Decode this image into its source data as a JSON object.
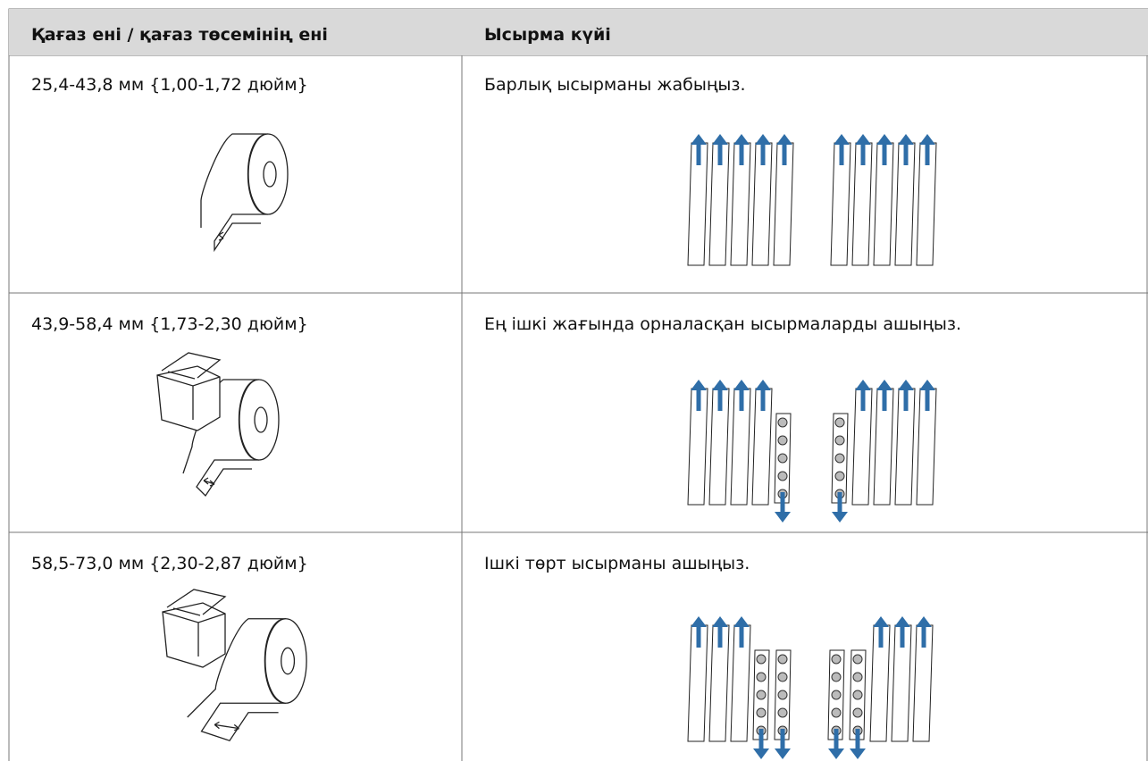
{
  "table": {
    "header": [
      "Қағаз ені / қағаз төсемінің ені",
      "Ысырма күйі"
    ],
    "rows": [
      [
        "25,4-43,8 мм {1,00-1,72 дюйм}",
        "Барлық ысырманы жабыңыз."
      ],
      [
        "43,9-58,4 мм {1,73-2,30 дюйм}",
        "Ең ішкі жағында орналасқан ысырмаларды ашыңыз."
      ],
      [
        "58,5-73,0 мм {2,30-2,87 дюйм}",
        "Ішкі төрт ысырманы ашыңыз."
      ]
    ]
  }
}
